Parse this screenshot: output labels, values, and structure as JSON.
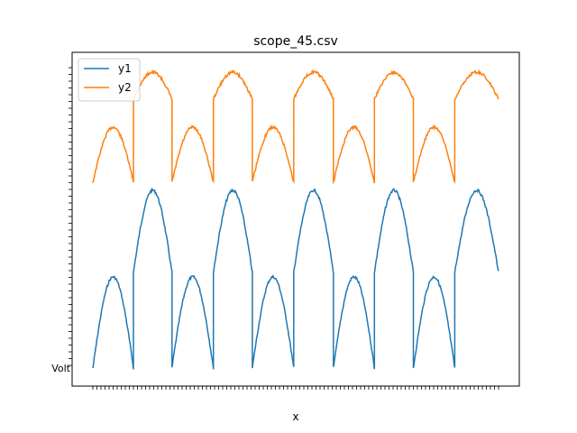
{
  "chart_data": {
    "type": "line",
    "title": "scope_45.csv",
    "xlabel": "x",
    "ylabel": "",
    "grid": false,
    "legend": {
      "position": "top-left"
    },
    "y_bottom_tick_label": "Volt",
    "ylim": [
      0,
      1
    ],
    "x": "sample index 0..N (categorical tick labels overlapping, unreadable)",
    "series": [
      {
        "name": "y1",
        "color": "#1f77b4",
        "shape": "rectified sine: five short arches on the lower level alternating with five tall arches reaching the upper level",
        "arches": [
          {
            "start": 0.0,
            "end": 0.1,
            "level": "low"
          },
          {
            "start": 0.1,
            "end": 0.195,
            "level": "high"
          },
          {
            "start": 0.195,
            "end": 0.297,
            "level": "low"
          },
          {
            "start": 0.297,
            "end": 0.393,
            "level": "high"
          },
          {
            "start": 0.393,
            "end": 0.495,
            "level": "low"
          },
          {
            "start": 0.495,
            "end": 0.593,
            "level": "high"
          },
          {
            "start": 0.593,
            "end": 0.694,
            "level": "low"
          },
          {
            "start": 0.694,
            "end": 0.79,
            "level": "high"
          },
          {
            "start": 0.79,
            "end": 0.892,
            "level": "low"
          },
          {
            "start": 0.892,
            "end": 1.0,
            "level": "high"
          }
        ]
      },
      {
        "name": "y2",
        "color": "#ff7f0e",
        "shape": "rectified sine offset above y1: short arches on the middle level alternating with tall arches reaching the top",
        "arches": [
          {
            "start": 0.0,
            "end": 0.1,
            "level": "mid"
          },
          {
            "start": 0.1,
            "end": 0.195,
            "level": "top"
          },
          {
            "start": 0.195,
            "end": 0.297,
            "level": "mid"
          },
          {
            "start": 0.297,
            "end": 0.393,
            "level": "top"
          },
          {
            "start": 0.393,
            "end": 0.495,
            "level": "mid"
          },
          {
            "start": 0.495,
            "end": 0.593,
            "level": "top"
          },
          {
            "start": 0.593,
            "end": 0.694,
            "level": "mid"
          },
          {
            "start": 0.694,
            "end": 0.79,
            "level": "top"
          },
          {
            "start": 0.79,
            "end": 0.892,
            "level": "mid"
          },
          {
            "start": 0.892,
            "end": 1.0,
            "level": "top"
          }
        ]
      }
    ]
  }
}
